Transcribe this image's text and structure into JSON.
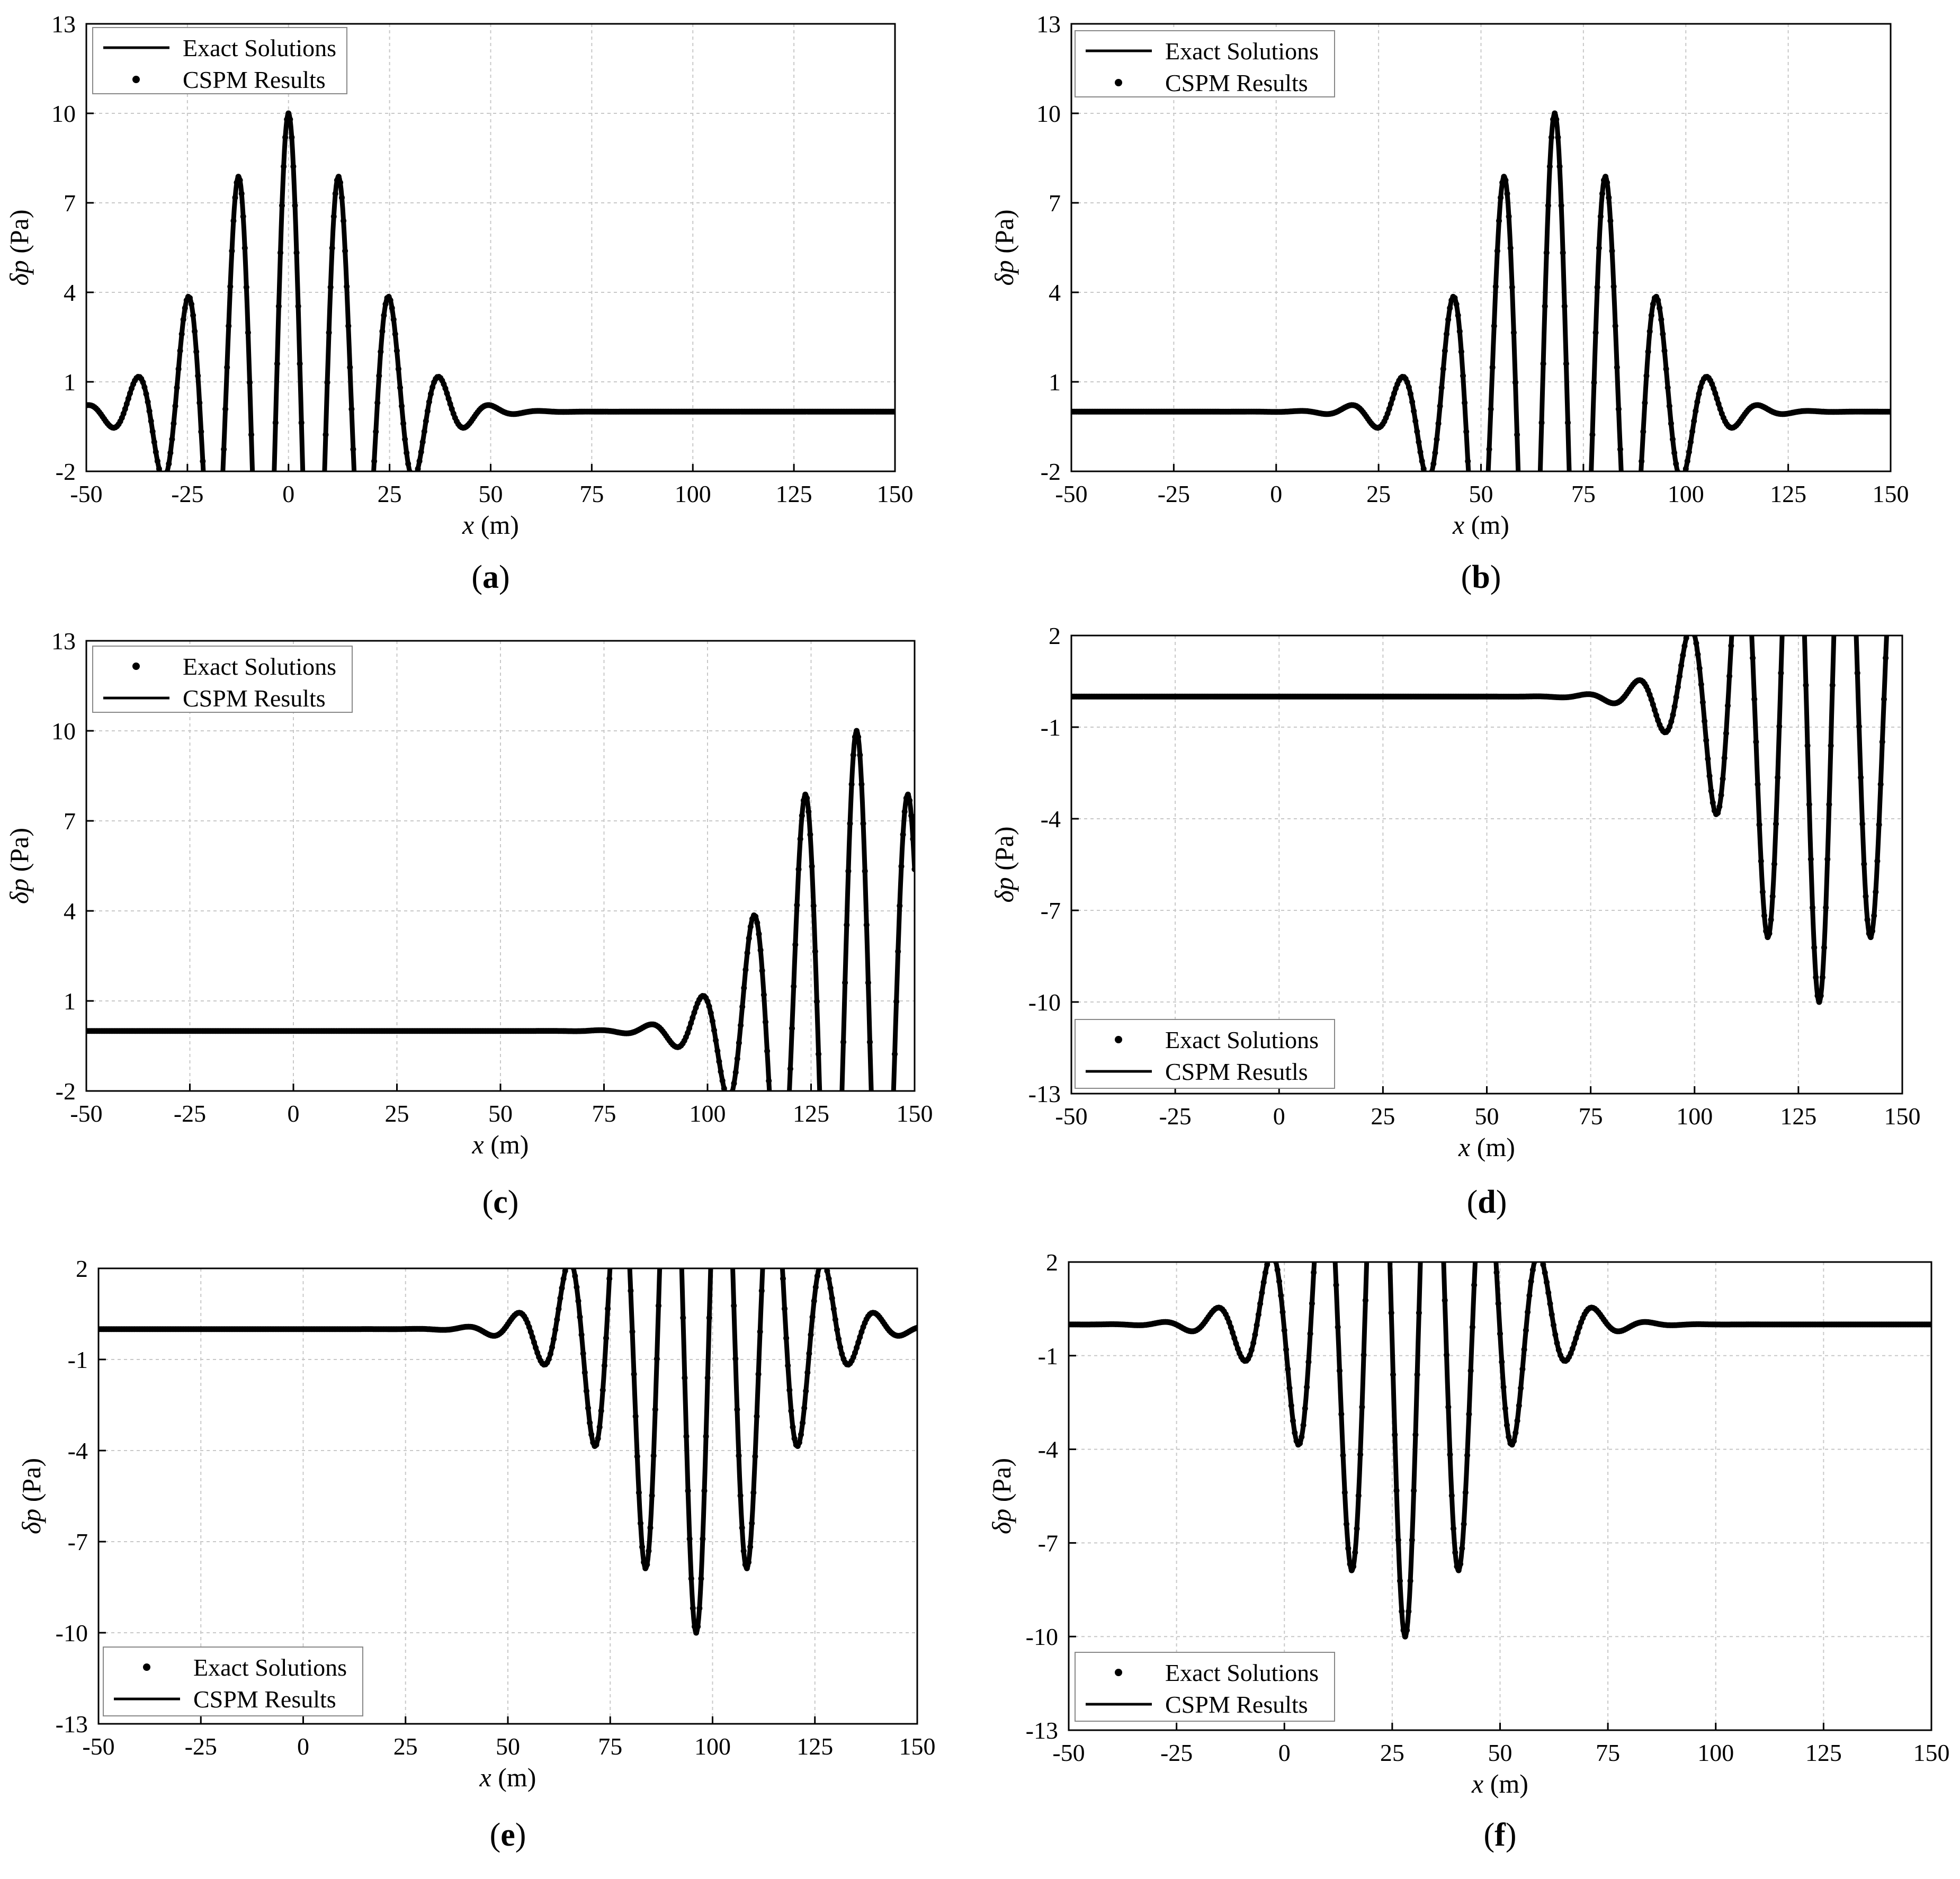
{
  "chart_data": [
    {
      "panel": "(a)",
      "type": "line",
      "xlabel_var": "x",
      "xlabel_unit": " (m)",
      "ylabel_var": "δp",
      "ylabel_unit": " (Pa)",
      "xlim": [
        -50,
        150
      ],
      "ylim": [
        -2,
        13
      ],
      "xticks": [
        "-50",
        "-25",
        "0",
        "25",
        "50",
        "75",
        "100",
        "125",
        "150"
      ],
      "yticks": [
        "-2",
        "1",
        "4",
        "7",
        "10",
        "13"
      ],
      "legend_position": "top-left",
      "legend": [
        {
          "label": "Exact Solutions",
          "marker": "line"
        },
        {
          "label": "CSPM Results",
          "marker": "dot"
        }
      ],
      "wave": {
        "amplitude": 10,
        "center": 0,
        "wavelength": 12.5,
        "sigma": 18,
        "baseline": 0
      },
      "series": [
        {
          "name": "Exact Solutions",
          "style": "line"
        },
        {
          "name": "CSPM Results",
          "style": "dots"
        }
      ]
    },
    {
      "panel": "(b)",
      "type": "line",
      "xlabel_var": "x",
      "xlabel_unit": " (m)",
      "ylabel_var": "δp",
      "ylabel_unit": " (Pa)",
      "xlim": [
        -50,
        150
      ],
      "ylim": [
        -2,
        13
      ],
      "xticks": [
        "-50",
        "-25",
        "0",
        "25",
        "50",
        "75",
        "100",
        "125",
        "150"
      ],
      "yticks": [
        "-2",
        "1",
        "4",
        "7",
        "10",
        "13"
      ],
      "legend_position": "top-left",
      "legend": [
        {
          "label": "Exact Solutions",
          "marker": "line"
        },
        {
          "label": "CSPM Results",
          "marker": "dot"
        }
      ],
      "wave": {
        "amplitude": 10,
        "center": 68,
        "wavelength": 12.5,
        "sigma": 18,
        "baseline": 0
      },
      "series": [
        {
          "name": "Exact Solutions",
          "style": "line"
        },
        {
          "name": "CSPM Results",
          "style": "dots"
        }
      ]
    },
    {
      "panel": "(c)",
      "type": "line",
      "xlabel_var": "x",
      "xlabel_unit": " (m)",
      "ylabel_var": "δp",
      "ylabel_unit": " (Pa)",
      "xlim": [
        -50,
        150
      ],
      "ylim": [
        -2,
        13
      ],
      "xticks": [
        "-50",
        "-25",
        "0",
        "25",
        "50",
        "75",
        "100",
        "125",
        "150"
      ],
      "yticks": [
        "-2",
        "1",
        "4",
        "7",
        "10",
        "13"
      ],
      "legend_position": "top-left",
      "legend": [
        {
          "label": "Exact Solutions",
          "marker": "dot"
        },
        {
          "label": "CSPM Results",
          "marker": "line"
        }
      ],
      "wave": {
        "amplitude": 10,
        "center": 136,
        "wavelength": 12.5,
        "sigma": 18,
        "baseline": 0
      },
      "series": [
        {
          "name": "Exact Solutions",
          "style": "dots"
        },
        {
          "name": "CSPM Results",
          "style": "line"
        }
      ]
    },
    {
      "panel": "(d)",
      "type": "line",
      "xlabel_var": "x",
      "xlabel_unit": " (m)",
      "ylabel_var": "δp",
      "ylabel_unit": " (Pa)",
      "xlim": [
        -50,
        150
      ],
      "ylim": [
        -13,
        2
      ],
      "xticks": [
        "-50",
        "-25",
        "0",
        "25",
        "50",
        "75",
        "100",
        "125",
        "150"
      ],
      "yticks": [
        "-13",
        "-10",
        "-7",
        "-4",
        "-1",
        "2"
      ],
      "legend_position": "bottom-left",
      "legend": [
        {
          "label": "Exact Solutions",
          "marker": "dot"
        },
        {
          "label": "CSPM Resutls",
          "marker": "line"
        }
      ],
      "wave": {
        "amplitude": -10,
        "center": 130,
        "wavelength": 12.5,
        "sigma": 18,
        "baseline": 0
      },
      "series": [
        {
          "name": "Exact Solutions",
          "style": "dots"
        },
        {
          "name": "CSPM Resutls",
          "style": "line"
        }
      ]
    },
    {
      "panel": "(e)",
      "type": "line",
      "xlabel_var": "x",
      "xlabel_unit": " (m)",
      "ylabel_var": "δp",
      "ylabel_unit": " (Pa)",
      "xlim": [
        -50,
        150
      ],
      "ylim": [
        -13,
        2
      ],
      "xticks": [
        "-50",
        "-25",
        "0",
        "25",
        "50",
        "75",
        "100",
        "125",
        "150"
      ],
      "yticks": [
        "-13",
        "-10",
        "-7",
        "-4",
        "-1",
        "2"
      ],
      "legend_position": "bottom-left",
      "legend": [
        {
          "label": "Exact Solutions",
          "marker": "dot"
        },
        {
          "label": "CSPM Results",
          "marker": "line"
        }
      ],
      "wave": {
        "amplitude": -10,
        "center": 96,
        "wavelength": 12.5,
        "sigma": 18,
        "baseline": 0
      },
      "series": [
        {
          "name": "Exact Solutions",
          "style": "dots"
        },
        {
          "name": "CSPM Results",
          "style": "line"
        }
      ]
    },
    {
      "panel": "(f)",
      "type": "line",
      "xlabel_var": "x",
      "xlabel_unit": " (m)",
      "ylabel_var": "δp",
      "ylabel_unit": " (Pa)",
      "xlim": [
        -50,
        150
      ],
      "ylim": [
        -13,
        2
      ],
      "xticks": [
        "-50",
        "-25",
        "0",
        "25",
        "50",
        "75",
        "100",
        "125",
        "150"
      ],
      "yticks": [
        "-13",
        "-10",
        "-7",
        "-4",
        "-1",
        "2"
      ],
      "legend_position": "bottom-left",
      "legend": [
        {
          "label": "Exact Solutions",
          "marker": "dot"
        },
        {
          "label": "CSPM Results",
          "marker": "line"
        }
      ],
      "wave": {
        "amplitude": -10,
        "center": 28,
        "wavelength": 12.5,
        "sigma": 18,
        "baseline": 0
      },
      "series": [
        {
          "name": "Exact Solutions",
          "style": "dots"
        },
        {
          "name": "CSPM Results",
          "style": "line"
        }
      ]
    }
  ]
}
